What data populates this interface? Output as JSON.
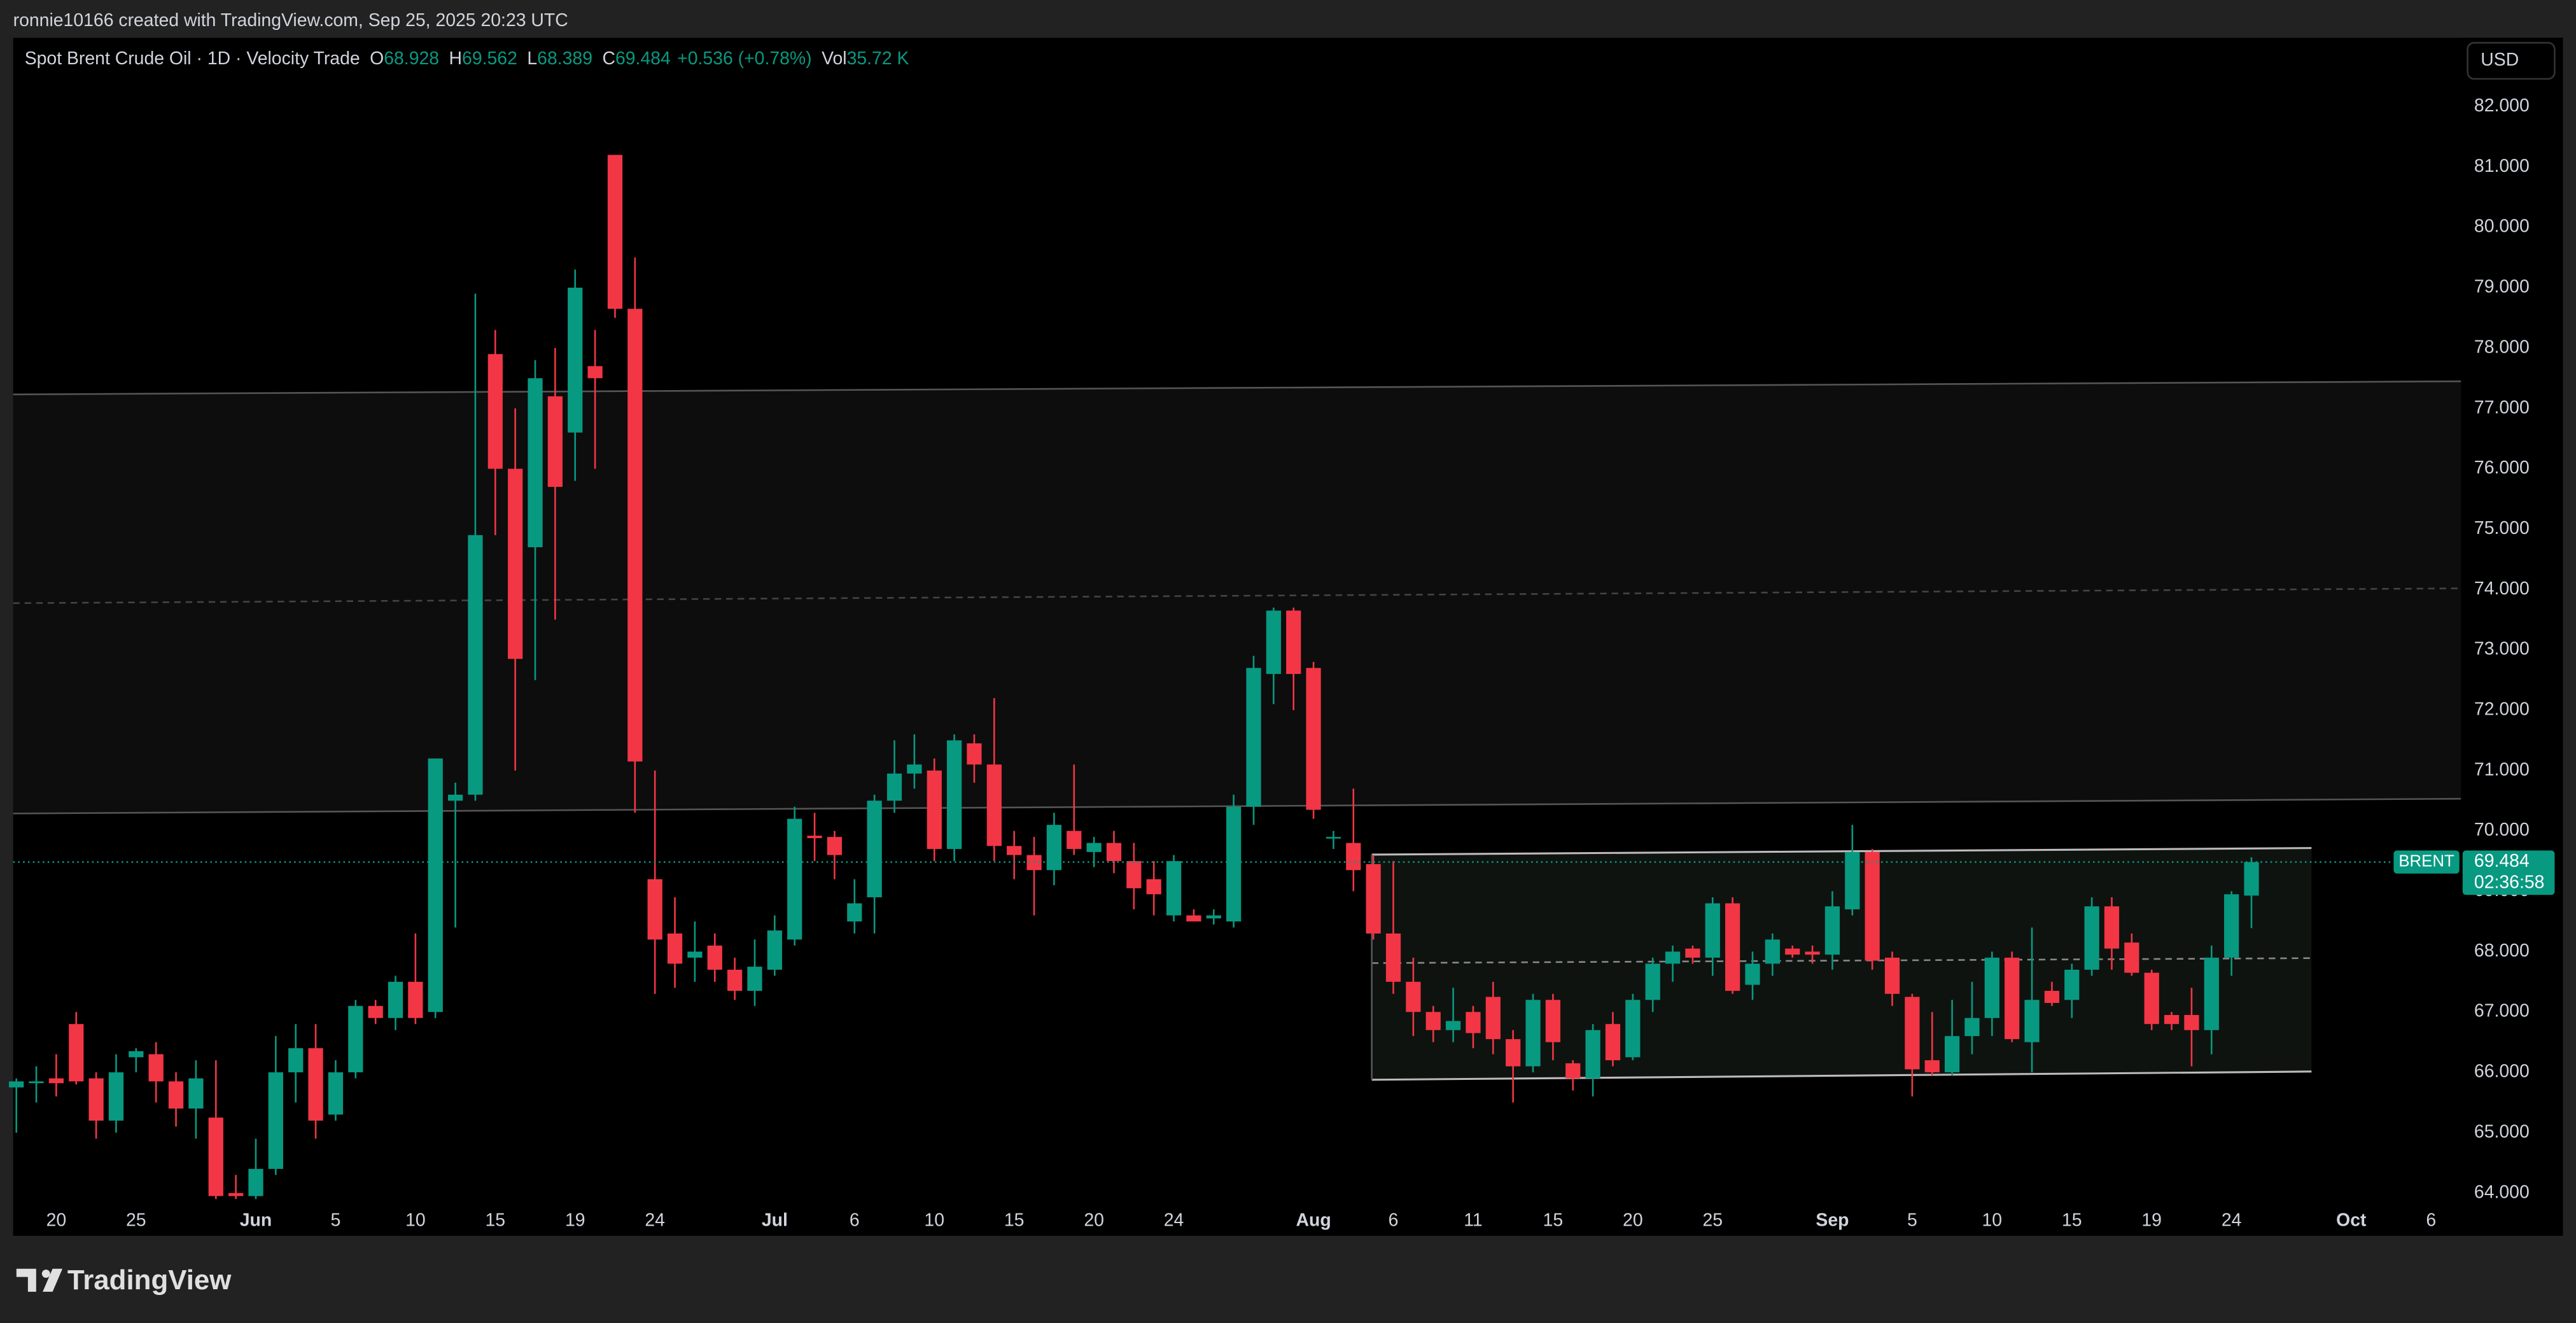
{
  "page": {
    "creator_line": "ronnie10166 created with TradingView.com, Sep 25, 2025 20:23 UTC",
    "currency": "USD",
    "watermark": "TradingView"
  },
  "chart_data": {
    "type": "candlestick",
    "title": "Spot Brent Crude Oil · 1D · Velocity Trade",
    "ohlc_labels": [
      "O",
      "H",
      "L",
      "C"
    ],
    "change": "+0.536 (+0.78%)",
    "volume_label": "Vol",
    "volume": "35.72 K",
    "symbol_label": "BRENT",
    "countdown": "02:36:58",
    "up_color": "#089981",
    "down_color": "#f23645",
    "grid": false,
    "open": [
      65.75,
      65.82,
      65.9,
      66.8,
      65.9,
      65.2,
      66.25,
      66.3,
      65.85,
      65.4,
      65.25,
      64.0,
      63.95,
      64.4,
      66.0,
      66.4,
      65.3,
      66.0,
      67.1,
      66.9,
      67.5,
      67.0,
      70.5,
      70.6,
      77.9,
      76.0,
      74.7,
      77.2,
      76.6,
      77.7,
      81.2,
      78.65,
      69.2,
      68.3,
      67.9,
      68.1,
      67.7,
      67.35,
      67.7,
      68.2,
      69.92,
      69.9,
      68.5,
      68.9,
      70.5,
      70.95,
      71.0,
      69.7,
      71.45,
      71.1,
      69.75,
      69.6,
      69.35,
      70.0,
      69.65,
      69.8,
      69.5,
      69.2,
      68.6,
      68.6,
      68.55,
      68.5,
      70.4,
      72.6,
      73.65,
      72.7,
      69.9,
      69.8,
      69.45,
      68.3,
      67.5,
      67.0,
      66.7,
      67.0,
      67.25,
      66.55,
      66.1,
      67.2,
      66.15,
      65.9,
      66.8,
      66.25,
      67.2,
      67.8,
      68.05,
      67.9,
      68.8,
      67.45,
      67.8,
      68.05,
      68.0,
      67.95,
      68.7,
      69.65,
      67.9,
      67.25,
      66.2,
      66.0,
      66.6,
      66.9,
      67.9,
      66.5,
      67.35,
      67.2,
      67.7,
      68.75,
      68.15,
      67.65,
      66.95,
      66.95,
      66.7,
      67.9,
      68.928
    ],
    "high": [
      65.9,
      66.1,
      66.3,
      67.0,
      66.0,
      66.3,
      66.4,
      66.5,
      66.0,
      66.2,
      66.2,
      64.3,
      64.9,
      66.6,
      66.8,
      66.8,
      66.2,
      67.2,
      67.2,
      67.6,
      68.3,
      71.2,
      70.8,
      78.9,
      78.3,
      77.0,
      77.8,
      78.0,
      79.3,
      78.3,
      81.2,
      79.5,
      71.0,
      68.9,
      68.5,
      68.3,
      67.9,
      68.2,
      68.6,
      70.4,
      70.3,
      70.0,
      69.2,
      70.6,
      71.5,
      71.6,
      71.2,
      71.6,
      71.6,
      72.2,
      70.0,
      69.9,
      70.3,
      71.1,
      69.9,
      70.0,
      69.8,
      69.5,
      69.6,
      68.7,
      68.7,
      70.6,
      72.9,
      73.7,
      73.7,
      72.8,
      70.0,
      70.7,
      69.6,
      69.5,
      67.9,
      67.1,
      67.4,
      67.1,
      67.5,
      66.7,
      67.3,
      67.3,
      66.2,
      66.8,
      67.0,
      67.3,
      67.9,
      68.1,
      68.1,
      68.9,
      68.9,
      68.0,
      68.3,
      68.1,
      68.1,
      69.0,
      70.1,
      69.7,
      68.0,
      67.3,
      67.0,
      67.2,
      67.5,
      68.0,
      68.0,
      68.4,
      67.5,
      67.8,
      68.9,
      68.9,
      68.3,
      67.7,
      67.0,
      67.4,
      68.1,
      69.0,
      69.562
    ],
    "low": [
      65.0,
      65.5,
      65.6,
      65.8,
      64.9,
      65.0,
      66.0,
      65.5,
      65.1,
      64.9,
      63.9,
      63.9,
      63.9,
      64.3,
      65.5,
      64.9,
      65.2,
      65.9,
      66.8,
      66.7,
      66.8,
      66.9,
      68.4,
      70.5,
      74.9,
      71.0,
      72.5,
      73.5,
      75.8,
      76.0,
      78.5,
      70.3,
      67.3,
      67.4,
      67.5,
      67.5,
      67.2,
      67.1,
      67.6,
      68.1,
      69.5,
      69.2,
      68.3,
      68.3,
      70.3,
      70.7,
      69.5,
      69.5,
      70.8,
      69.5,
      69.2,
      68.6,
      69.1,
      69.6,
      69.4,
      69.3,
      68.7,
      68.6,
      68.5,
      68.5,
      68.45,
      68.4,
      70.1,
      72.1,
      72.0,
      70.2,
      69.7,
      69.0,
      68.2,
      67.3,
      66.6,
      66.5,
      66.5,
      66.4,
      66.3,
      65.5,
      66.0,
      66.2,
      65.7,
      65.6,
      66.1,
      66.2,
      67.0,
      67.5,
      67.8,
      67.6,
      67.3,
      67.2,
      67.6,
      67.9,
      67.8,
      67.7,
      68.6,
      67.7,
      67.1,
      65.6,
      65.95,
      65.95,
      66.3,
      66.6,
      66.5,
      66.0,
      67.1,
      66.9,
      67.6,
      67.7,
      67.6,
      66.7,
      66.7,
      66.1,
      66.3,
      67.6,
      68.389
    ],
    "close": [
      65.85,
      65.85,
      65.82,
      65.85,
      65.2,
      66.0,
      66.35,
      65.85,
      65.4,
      65.9,
      63.95,
      63.95,
      64.4,
      66.0,
      66.4,
      65.2,
      66.0,
      67.1,
      66.9,
      67.5,
      66.9,
      71.2,
      70.6,
      74.9,
      76.0,
      72.85,
      77.5,
      75.7,
      79.0,
      77.5,
      78.65,
      71.15,
      68.2,
      67.8,
      68.0,
      67.7,
      67.35,
      67.75,
      68.35,
      70.2,
      69.88,
      69.6,
      68.8,
      70.5,
      70.95,
      71.1,
      69.7,
      71.5,
      71.1,
      69.75,
      69.6,
      69.35,
      70.1,
      69.7,
      69.8,
      69.5,
      69.05,
      68.95,
      69.5,
      68.5,
      68.6,
      70.4,
      72.7,
      73.65,
      72.6,
      70.35,
      69.9,
      69.35,
      68.3,
      67.5,
      67.0,
      66.7,
      66.85,
      66.65,
      66.55,
      66.1,
      67.2,
      66.5,
      65.9,
      66.7,
      66.2,
      67.2,
      67.8,
      68.0,
      67.9,
      68.8,
      67.35,
      67.8,
      68.2,
      67.95,
      67.95,
      68.75,
      69.65,
      67.85,
      67.3,
      66.05,
      66.0,
      66.6,
      66.9,
      67.9,
      66.55,
      67.2,
      67.15,
      67.7,
      68.75,
      68.05,
      67.65,
      66.8,
      66.8,
      66.7,
      67.9,
      68.95,
      69.484
    ],
    "xlim": [
      -0.16,
      122.5
    ],
    "xticks": [
      {
        "value": 2,
        "label": "20"
      },
      {
        "value": 6,
        "label": "25"
      },
      {
        "value": 12,
        "label": "Jun"
      },
      {
        "value": 16,
        "label": "5"
      },
      {
        "value": 20,
        "label": "10"
      },
      {
        "value": 24,
        "label": "15"
      },
      {
        "value": 28,
        "label": "19"
      },
      {
        "value": 32,
        "label": "24"
      },
      {
        "value": 38,
        "label": "Jul"
      },
      {
        "value": 42,
        "label": "6"
      },
      {
        "value": 46,
        "label": "10"
      },
      {
        "value": 50,
        "label": "15"
      },
      {
        "value": 54,
        "label": "20"
      },
      {
        "value": 58,
        "label": "24"
      },
      {
        "value": 65,
        "label": "Aug"
      },
      {
        "value": 69,
        "label": "6"
      },
      {
        "value": 73,
        "label": "11"
      },
      {
        "value": 77,
        "label": "15"
      },
      {
        "value": 81,
        "label": "20"
      },
      {
        "value": 85,
        "label": "25"
      },
      {
        "value": 91,
        "label": "Sep"
      },
      {
        "value": 95,
        "label": "5"
      },
      {
        "value": 99,
        "label": "10"
      },
      {
        "value": 103,
        "label": "15"
      },
      {
        "value": 107,
        "label": "19"
      },
      {
        "value": 111,
        "label": "24"
      },
      {
        "value": 117,
        "label": "Oct"
      },
      {
        "value": 121,
        "label": "6"
      }
    ],
    "ylim": [
      63.29,
      83.14
    ],
    "yticks": [
      {
        "value": 64,
        "label": "64.000"
      },
      {
        "value": 65,
        "label": "65.000"
      },
      {
        "value": 66,
        "label": "66.000"
      },
      {
        "value": 67,
        "label": "67.000"
      },
      {
        "value": 68,
        "label": "68.000"
      },
      {
        "value": 69,
        "label": "69.000"
      },
      {
        "value": 70,
        "label": "70.000"
      },
      {
        "value": 71,
        "label": "71.000"
      },
      {
        "value": 72,
        "label": "72.000"
      },
      {
        "value": 73,
        "label": "73.000"
      },
      {
        "value": 74,
        "label": "74.000"
      },
      {
        "value": 75,
        "label": "75.000"
      },
      {
        "value": 76,
        "label": "76.000"
      },
      {
        "value": 77,
        "label": "77.000"
      },
      {
        "value": 78,
        "label": "78.000"
      },
      {
        "value": 79,
        "label": "79.000"
      },
      {
        "value": 80,
        "label": "80.000"
      },
      {
        "value": 81,
        "label": "81.000"
      },
      {
        "value": 82,
        "label": "82.000"
      }
    ]
  }
}
